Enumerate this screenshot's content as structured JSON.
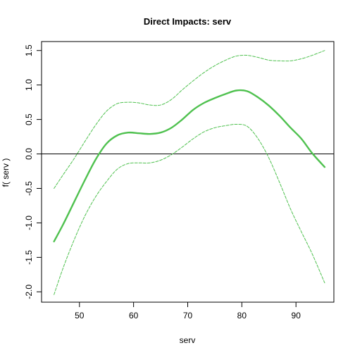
{
  "chart_data": {
    "type": "line",
    "title": "Direct Impacts: serv",
    "xlabel": "serv",
    "ylabel": "f( serv )",
    "xlim": [
      43,
      97
    ],
    "ylim": [
      -2.15,
      1.63
    ],
    "x_ticks": [
      50,
      60,
      70,
      80,
      90
    ],
    "y_ticks": [
      -2.0,
      -1.5,
      -1.0,
      -0.5,
      0.0,
      0.5,
      1.0,
      1.5
    ],
    "x_tick_labels": [
      "50",
      "60",
      "70",
      "80",
      "90"
    ],
    "y_tick_labels": [
      "-2.0",
      "-1.5",
      "-1.0",
      "-0.5",
      "0.0",
      "0.5",
      "1.0",
      "1.5"
    ],
    "reference_line_y": 0,
    "colors": {
      "estimate": "#4fc14f",
      "band": "#4fc14f",
      "reference": "#000000",
      "axis": "#000000"
    },
    "series": [
      {
        "role": "estimate",
        "style": "solid",
        "x": [
          45.3,
          47,
          49,
          51,
          53,
          55,
          57,
          59,
          61,
          63,
          65,
          67,
          69,
          71,
          73,
          75,
          77,
          79,
          81,
          83,
          85,
          87,
          89,
          91,
          93,
          95.3
        ],
        "y": [
          -1.27,
          -1.02,
          -0.7,
          -0.38,
          -0.08,
          0.15,
          0.27,
          0.31,
          0.3,
          0.29,
          0.31,
          0.38,
          0.5,
          0.64,
          0.74,
          0.81,
          0.87,
          0.92,
          0.91,
          0.82,
          0.7,
          0.55,
          0.38,
          0.22,
          0.01,
          -0.19
        ]
      },
      {
        "role": "upper",
        "style": "dashed",
        "x": [
          45.3,
          47,
          49,
          51,
          53,
          55,
          57,
          59,
          61,
          63,
          65,
          67,
          69,
          71,
          73,
          75,
          77,
          79,
          81,
          83,
          85,
          87,
          89,
          91,
          93,
          95.3
        ],
        "y": [
          -0.5,
          -0.3,
          -0.07,
          0.18,
          0.42,
          0.62,
          0.73,
          0.75,
          0.74,
          0.71,
          0.71,
          0.79,
          0.93,
          1.06,
          1.18,
          1.28,
          1.36,
          1.42,
          1.43,
          1.4,
          1.36,
          1.35,
          1.35,
          1.38,
          1.43,
          1.5
        ]
      },
      {
        "role": "lower",
        "style": "dashed",
        "x": [
          45.3,
          47,
          49,
          51,
          53,
          55,
          57,
          59,
          61,
          63,
          65,
          67,
          69,
          71,
          73,
          75,
          77,
          79,
          81,
          83,
          85,
          87,
          89,
          91,
          93,
          95.3
        ],
        "y": [
          -2.04,
          -1.65,
          -1.25,
          -0.9,
          -0.62,
          -0.4,
          -0.22,
          -0.14,
          -0.13,
          -0.13,
          -0.09,
          -0.01,
          0.1,
          0.22,
          0.32,
          0.38,
          0.41,
          0.43,
          0.4,
          0.22,
          -0.06,
          -0.42,
          -0.8,
          -1.13,
          -1.45,
          -1.87
        ]
      }
    ]
  }
}
